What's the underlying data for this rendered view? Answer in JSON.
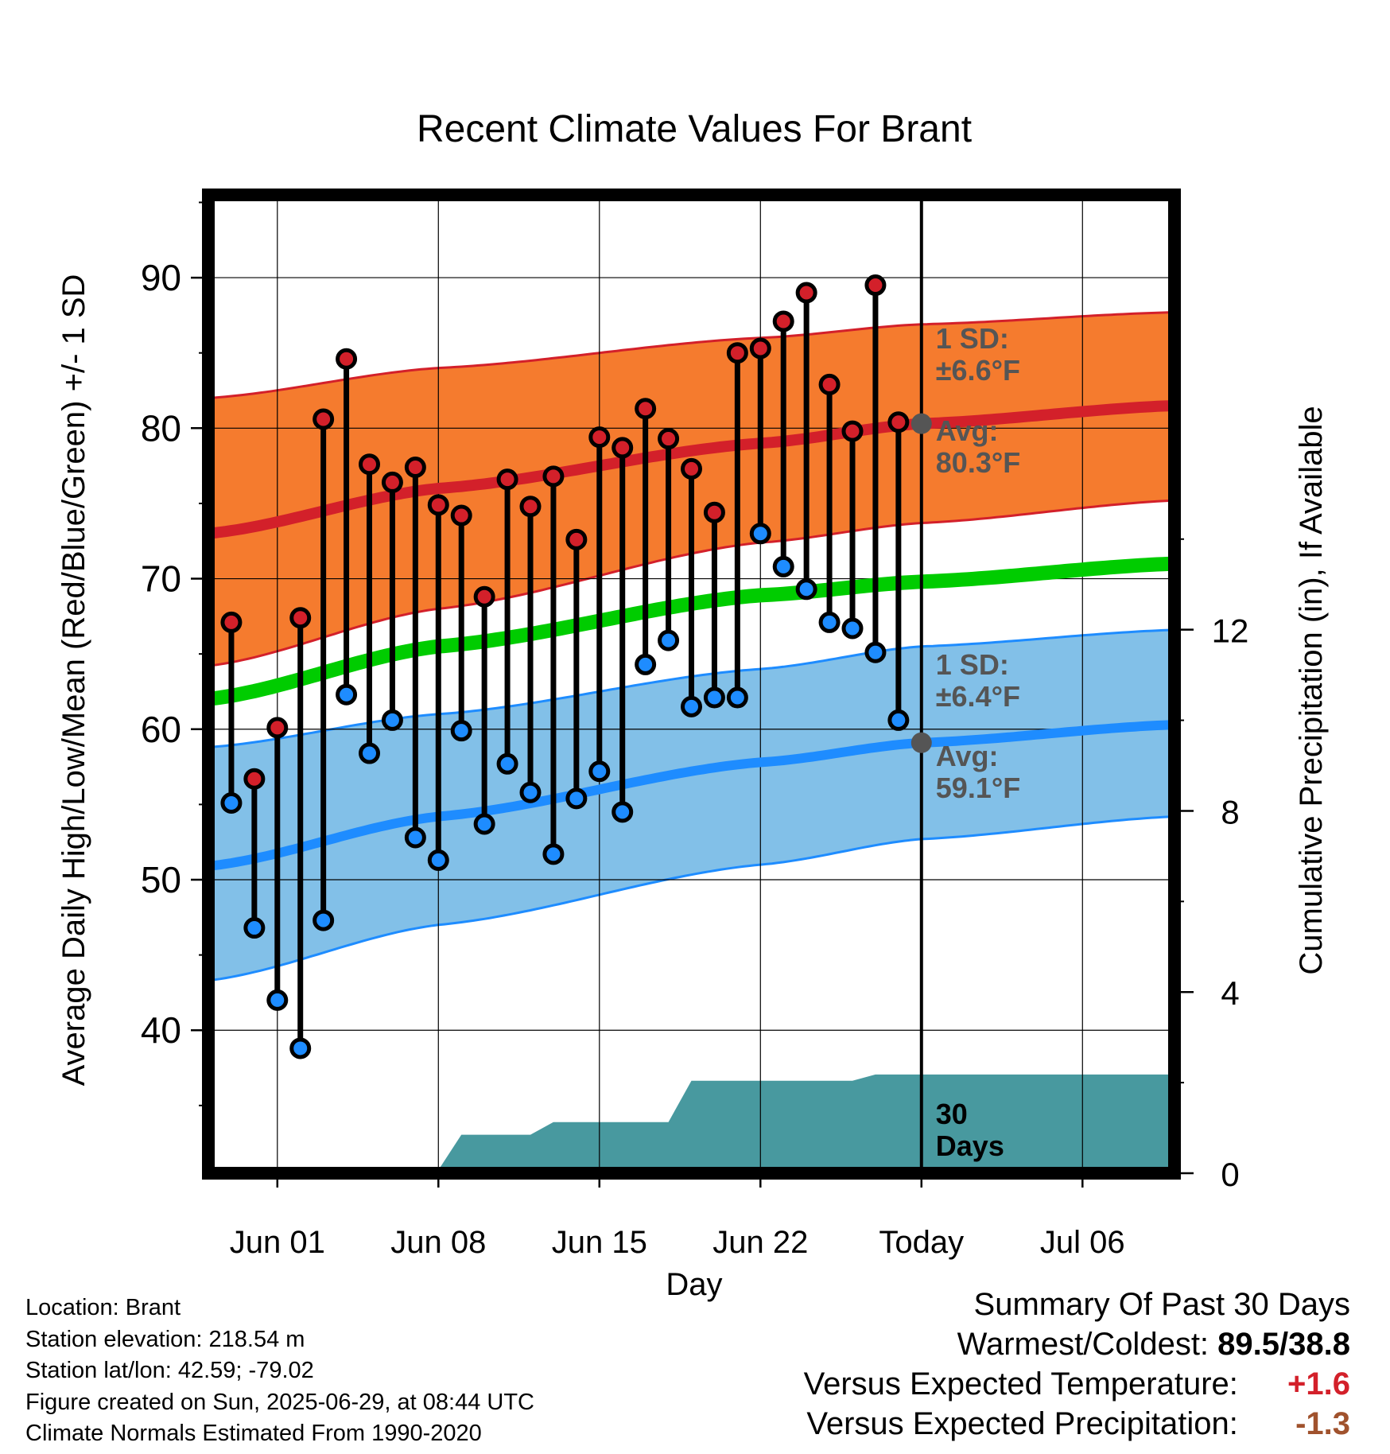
{
  "chart_data": {
    "type": "line",
    "title": "Recent Climate Values For Brant",
    "xlabel": "Day",
    "ylabel": "Average Daily High/Low/Mean (Red/Blue/Green) +/- 1 SD",
    "y2label": "Cumulative Precipitation (in), If Available",
    "x_range": [
      "2025-05-29",
      "2025-07-10"
    ],
    "ylim": [
      30.5,
      95.5
    ],
    "y2lim": [
      0,
      21.6
    ],
    "yticks": [
      40,
      50,
      60,
      70,
      80,
      90
    ],
    "y2ticks": [
      0,
      4,
      8,
      12
    ],
    "xticks": [
      {
        "date": "2025-06-01",
        "label": "Jun 01"
      },
      {
        "date": "2025-06-08",
        "label": "Jun 08"
      },
      {
        "date": "2025-06-15",
        "label": "Jun 15"
      },
      {
        "date": "2025-06-22",
        "label": "Jun 22"
      },
      {
        "date": "2025-06-29",
        "label": "Today"
      },
      {
        "date": "2025-07-06",
        "label": "Jul 06"
      }
    ],
    "grid": true,
    "today": "2025-06-29",
    "normals": {
      "dates": [
        "2025-05-29",
        "2025-06-08",
        "2025-06-22",
        "2025-06-29",
        "2025-07-10"
      ],
      "high_avg": [
        73.0,
        76.0,
        79.0,
        80.3,
        81.5
      ],
      "high_sd_upper": [
        82.0,
        84.0,
        86.0,
        86.9,
        87.7
      ],
      "high_sd_lower": [
        64.2,
        68.0,
        72.4,
        73.7,
        75.2
      ],
      "mean_avg": [
        62.0,
        65.5,
        68.9,
        69.8,
        71.0
      ],
      "low_avg": [
        50.9,
        54.2,
        57.8,
        59.1,
        60.3
      ],
      "low_sd_upper": [
        58.8,
        61.0,
        64.0,
        65.5,
        66.6
      ],
      "low_sd_lower": [
        43.3,
        47.0,
        51.0,
        52.7,
        54.2
      ]
    },
    "series": [
      {
        "name": "High",
        "x": [
          "2025-05-30",
          "2025-05-31",
          "2025-06-01",
          "2025-06-02",
          "2025-06-03",
          "2025-06-04",
          "2025-06-05",
          "2025-06-06",
          "2025-06-07",
          "2025-06-08",
          "2025-06-09",
          "2025-06-10",
          "2025-06-11",
          "2025-06-12",
          "2025-06-13",
          "2025-06-14",
          "2025-06-15",
          "2025-06-16",
          "2025-06-17",
          "2025-06-18",
          "2025-06-19",
          "2025-06-20",
          "2025-06-21",
          "2025-06-22",
          "2025-06-23",
          "2025-06-24",
          "2025-06-25",
          "2025-06-26",
          "2025-06-27",
          "2025-06-28"
        ],
        "values": [
          67.1,
          56.7,
          60.1,
          67.4,
          80.6,
          84.6,
          77.6,
          76.4,
          77.4,
          74.9,
          74.2,
          68.8,
          76.6,
          74.8,
          76.8,
          72.6,
          79.4,
          78.7,
          81.3,
          79.3,
          77.3,
          74.4,
          85.0,
          85.3,
          87.1,
          89.0,
          82.9,
          79.8,
          89.5,
          80.4
        ]
      },
      {
        "name": "Low",
        "x": [
          "2025-05-30",
          "2025-05-31",
          "2025-06-01",
          "2025-06-02",
          "2025-06-03",
          "2025-06-04",
          "2025-06-05",
          "2025-06-06",
          "2025-06-07",
          "2025-06-08",
          "2025-06-09",
          "2025-06-10",
          "2025-06-11",
          "2025-06-12",
          "2025-06-13",
          "2025-06-14",
          "2025-06-15",
          "2025-06-16",
          "2025-06-17",
          "2025-06-18",
          "2025-06-19",
          "2025-06-20",
          "2025-06-21",
          "2025-06-22",
          "2025-06-23",
          "2025-06-24",
          "2025-06-25",
          "2025-06-26",
          "2025-06-27",
          "2025-06-28"
        ],
        "values": [
          55.1,
          46.8,
          42.0,
          38.8,
          47.3,
          62.3,
          58.4,
          60.6,
          52.8,
          51.3,
          59.9,
          53.7,
          57.7,
          55.8,
          51.7,
          55.4,
          57.2,
          54.5,
          64.3,
          65.9,
          61.5,
          62.1,
          62.1,
          73.0,
          70.8,
          69.3,
          67.1,
          66.7,
          65.1,
          60.6
        ]
      },
      {
        "name": "Cumulative Precipitation",
        "x": [
          "2025-05-29",
          "2025-06-04",
          "2025-06-05",
          "2025-06-06",
          "2025-06-08",
          "2025-06-09",
          "2025-06-12",
          "2025-06-13",
          "2025-06-17",
          "2025-06-18",
          "2025-06-19",
          "2025-06-26",
          "2025-06-27",
          "2025-07-10"
        ],
        "values": [
          0.0,
          0.0,
          0.0,
          0.07,
          0.07,
          0.85,
          0.85,
          1.13,
          1.13,
          1.13,
          2.04,
          2.04,
          2.18,
          2.18
        ]
      }
    ],
    "annotations": {
      "high_sd": [
        "1 SD:",
        "±6.6°F"
      ],
      "high_avg": [
        "Avg:",
        "80.3°F"
      ],
      "low_sd": [
        "1 SD:",
        "±6.4°F"
      ],
      "low_avg": [
        "Avg:",
        "59.1°F"
      ],
      "window": [
        "30",
        "Days"
      ]
    },
    "colors": {
      "high_band": "#f57b2e",
      "high_line": "#d3202a",
      "mean_line": "#00cc00",
      "low_band": "#82c0e8",
      "low_line": "#1e8cff",
      "precip": "#48999f",
      "annotation": "#555555",
      "high_dot": "#d3202a",
      "low_dot": "#1e8cff"
    }
  },
  "footer": {
    "location": "Location: Brant",
    "elevation": "Station elevation: 218.54 m",
    "latlon": "Station lat/lon: 42.59; -79.02",
    "created": "Figure created on Sun, 2025-06-29, at 08:44 UTC",
    "normals": "Climate Normals Estimated From 1990-2020"
  },
  "summary": {
    "title": "Summary Of Past 30 Days",
    "warm_cold_label": "Warmest/Coldest:",
    "warm_cold_value": "89.5/38.8",
    "temp_label": "Versus Expected Temperature:",
    "temp_value": "+1.6",
    "temp_color": "#d3202a",
    "precip_label": "Versus Expected Precipitation:",
    "precip_value": "-1.3",
    "precip_color": "#a0522d"
  }
}
